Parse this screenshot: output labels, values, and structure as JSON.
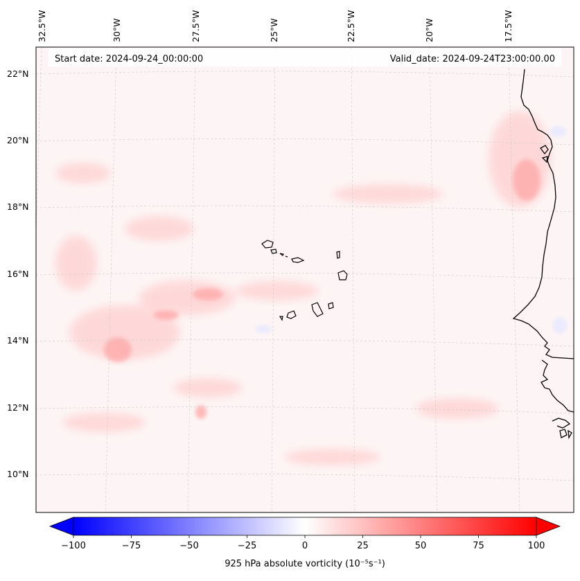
{
  "header": {
    "start_date": "Start date: 2024-09-24_00:00:00",
    "valid_date": "Valid_date: 2024-09-24T23:00:00.00"
  },
  "longitude_labels": [
    "32.5°W",
    "30°W",
    "27.5°W",
    "25°W",
    "22.5°W",
    "20°W",
    "17.5°W"
  ],
  "latitude_labels": [
    "22°N",
    "20°N",
    "18°N",
    "16°N",
    "14°N",
    "12°N",
    "10°N"
  ],
  "colorbar": {
    "ticks": [
      "−100",
      "−75",
      "−50",
      "−25",
      "0",
      "25",
      "50",
      "75",
      "100"
    ],
    "min": -100,
    "max": 100,
    "label": "925 hPa absolute vorticity (10⁻⁵s⁻¹)",
    "low_color": "#0000ff",
    "mid_color": "#ffffff",
    "high_color": "#ff0000"
  },
  "map": {
    "region": "Cape Verde Islands and West African coast",
    "colormap": "bwr"
  }
}
